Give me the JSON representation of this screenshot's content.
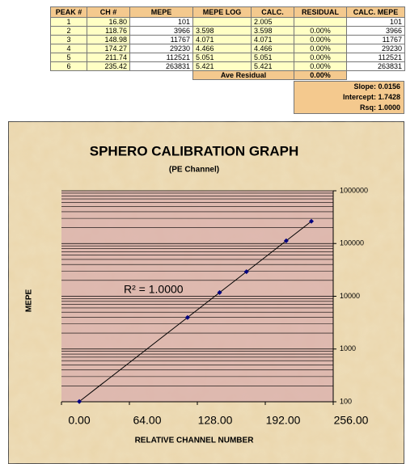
{
  "table": {
    "header": [
      "PEAK #",
      "CH #",
      "MEPE",
      "MEPE LOG",
      "CALC.",
      "RESIDUAL",
      "CALC. MEPE"
    ],
    "rows": [
      [
        "1",
        "16.80",
        "101",
        null,
        "2.005",
        null,
        "101"
      ],
      [
        "2",
        "118.76",
        "3966",
        "3.598",
        "3.598",
        "0.00%",
        "3966"
      ],
      [
        "3",
        "148.98",
        "11767",
        "4.071",
        "4.071",
        "0.00%",
        "11767"
      ],
      [
        "4",
        "174.27",
        "29230",
        "4.466",
        "4.466",
        "0.00%",
        "29230"
      ],
      [
        "5",
        "211.74",
        "112521",
        "5.051",
        "5.051",
        "0.00%",
        "112521"
      ],
      [
        "6",
        "235.42",
        "263831",
        "5.421",
        "5.421",
        "0.00%",
        "263831"
      ]
    ],
    "summary": {
      "label": "Ave Residual",
      "value": "0.00%"
    },
    "stats": [
      "Slope: 0.0156",
      "Intercept: 1.7428",
      "Rsq: 1.0000"
    ]
  },
  "chart_data": {
    "type": "scatter",
    "title": "SPHERO CALIBRATION GRAPH",
    "subtitle": "(PE Channel)",
    "x_label": "RELATIVE CHANNEL NUMBER",
    "y_label": "MEPE",
    "annotation": "R² = 1.0000",
    "x": [
      16.8,
      118.76,
      148.98,
      174.27,
      211.74,
      235.42
    ],
    "series": [
      {
        "name": "MEPE",
        "color": "#000080",
        "values": [
          101,
          3966,
          11767,
          29230,
          112521,
          263831
        ]
      }
    ],
    "xlim": [
      0,
      256
    ],
    "xticks": [
      {
        "value": 0,
        "label": "0.00"
      },
      {
        "value": 64,
        "label": "64.00"
      },
      {
        "value": 128,
        "label": "128.00"
      },
      {
        "value": 192,
        "label": "192.00"
      },
      {
        "value": 256,
        "label": "256.00"
      }
    ],
    "ylim": [
      100,
      1000000
    ],
    "yticks": [
      100,
      1000,
      10000,
      100000,
      1000000
    ],
    "y_scale": "log",
    "y_axis_side": "right",
    "grid": "log-minor",
    "trendline": true,
    "plot_color": "#d9aeae"
  }
}
